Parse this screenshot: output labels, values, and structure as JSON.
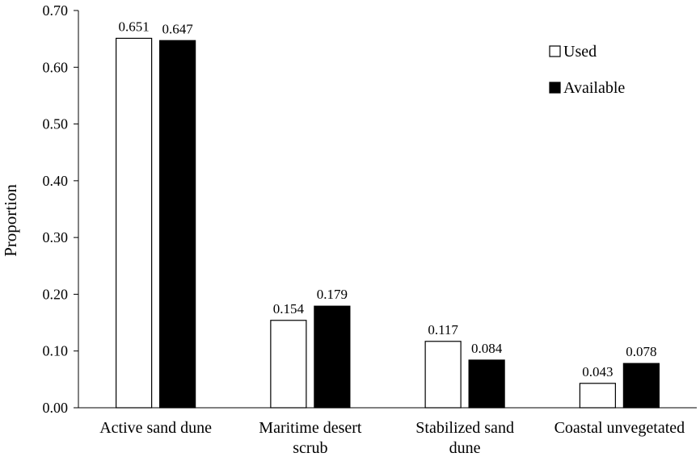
{
  "chart_data": {
    "type": "bar",
    "ylabel": "Proportion",
    "ylim": [
      0,
      0.7
    ],
    "yticks": [
      "0.00",
      "0.10",
      "0.20",
      "0.30",
      "0.40",
      "0.50",
      "0.60",
      "0.70"
    ],
    "categories": [
      [
        "Active sand dune"
      ],
      [
        "Maritime desert",
        "scrub"
      ],
      [
        "Stabilized sand",
        "dune"
      ],
      [
        "Coastal unvegetated"
      ]
    ],
    "series": [
      {
        "name": "Used",
        "values": [
          0.651,
          0.154,
          0.117,
          0.043
        ],
        "labels": [
          "0.651",
          "0.154",
          "0.117",
          "0.043"
        ],
        "color": "#ffffff"
      },
      {
        "name": "Available",
        "values": [
          0.647,
          0.179,
          0.084,
          0.078
        ],
        "labels": [
          "0.647",
          "0.179",
          "0.084",
          "0.078"
        ],
        "color": "#000000"
      }
    ],
    "grid": false,
    "legend": "top-right"
  }
}
